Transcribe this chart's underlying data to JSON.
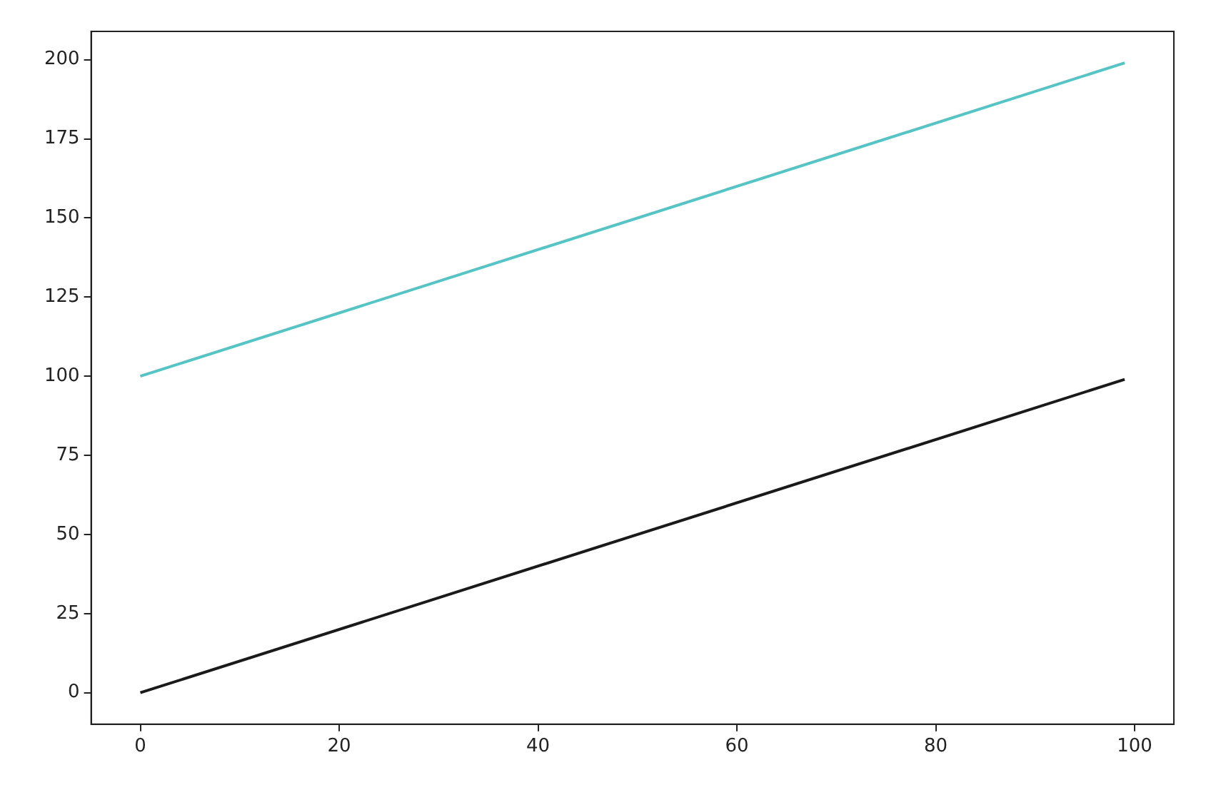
{
  "chart_data": {
    "type": "line",
    "x": [
      0,
      99
    ],
    "series": [
      {
        "color": "#1a1a1a",
        "values": [
          0,
          99
        ]
      },
      {
        "color": "#56c4c4",
        "values": [
          100,
          199
        ]
      }
    ],
    "xlim": [
      -4.95,
      103.95
    ],
    "ylim": [
      -9.95,
      208.95
    ],
    "xticks": [
      0,
      20,
      40,
      60,
      80,
      100
    ],
    "yticks": [
      0,
      25,
      50,
      75,
      100,
      125,
      150,
      175,
      200
    ],
    "legend": false
  }
}
